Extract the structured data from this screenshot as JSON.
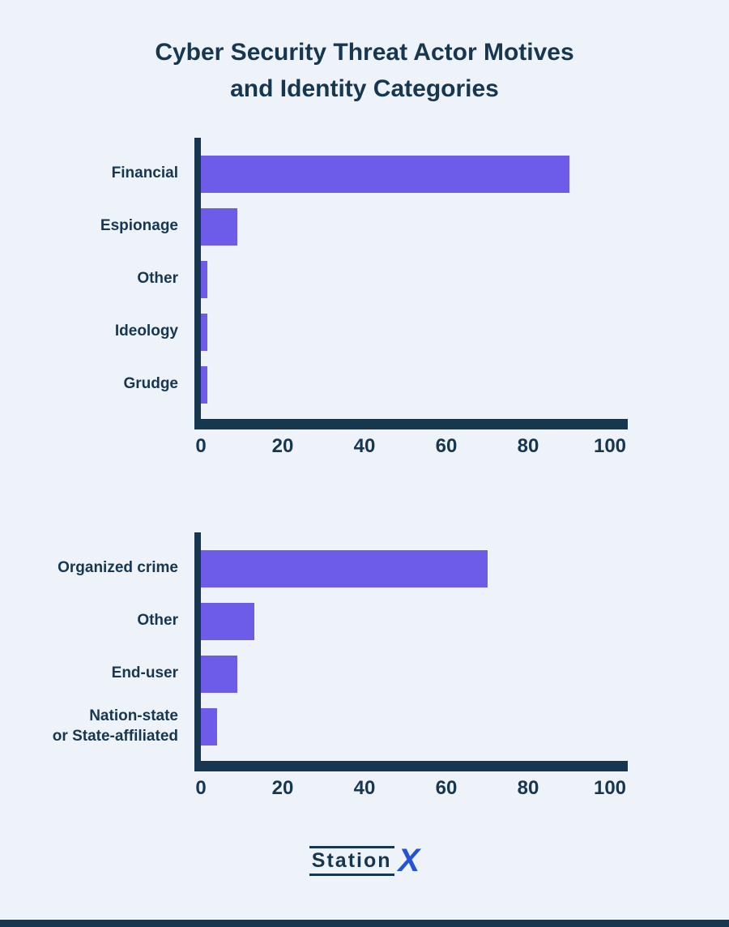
{
  "page": {
    "title_line1": "Cyber Security Threat Actor Motives",
    "title_line2": "and Identity Categories"
  },
  "colors": {
    "background": "#edf3f9",
    "bar": "#6c5ce7",
    "axis": "#17364f",
    "title": "#17364f",
    "logo_x": "#2553d6"
  },
  "chart_data": [
    {
      "type": "bar",
      "orientation": "horizontal",
      "categories": [
        "Financial",
        "Espionage",
        "Other",
        "Ideology",
        "Grudge"
      ],
      "values": [
        90,
        9,
        1.5,
        1.5,
        1.5
      ],
      "xlim": [
        0,
        100
      ],
      "xticks": [
        0,
        20,
        40,
        60,
        80,
        100
      ],
      "xlabel": "",
      "ylabel": "",
      "grid": false,
      "legend": false
    },
    {
      "type": "bar",
      "orientation": "horizontal",
      "categories": [
        "Organized crime",
        "Other",
        "End-user",
        "Nation-state\nor State-affiliated"
      ],
      "values": [
        70,
        13,
        9,
        4
      ],
      "xlim": [
        0,
        100
      ],
      "xticks": [
        0,
        20,
        40,
        60,
        80,
        100
      ],
      "xlabel": "",
      "ylabel": "",
      "grid": false,
      "legend": false
    }
  ],
  "logo": {
    "text": "Station",
    "x": "X"
  }
}
